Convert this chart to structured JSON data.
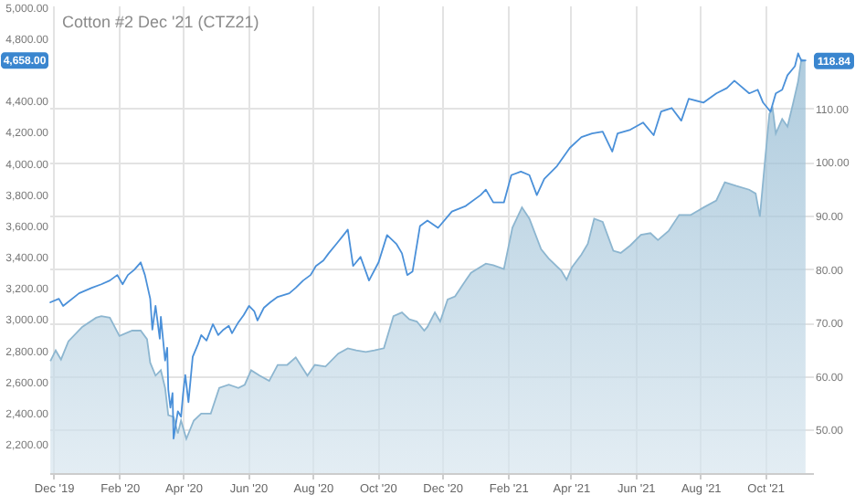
{
  "chart_data": {
    "type": "line",
    "title": "Cotton #2 Dec '21 (CTZ21)",
    "xlim": [
      "2019-11-27",
      "2021-11-15"
    ],
    "xticks": [
      {
        "value": "2019-12-01",
        "label": "Dec '19"
      },
      {
        "value": "2020-02-01",
        "label": "Feb '20"
      },
      {
        "value": "2020-04-01",
        "label": "Apr '20"
      },
      {
        "value": "2020-06-01",
        "label": "Jun '20"
      },
      {
        "value": "2020-08-01",
        "label": "Aug '20"
      },
      {
        "value": "2020-10-01",
        "label": "Oct '20"
      },
      {
        "value": "2020-12-01",
        "label": "Dec '20"
      },
      {
        "value": "2021-02-01",
        "label": "Feb '21"
      },
      {
        "value": "2021-04-01",
        "label": "Apr '21"
      },
      {
        "value": "2021-06-01",
        "label": "Jun '21"
      },
      {
        "value": "2021-08-01",
        "label": "Aug '21"
      },
      {
        "value": "2021-10-01",
        "label": "Oct '21"
      }
    ],
    "ylim": [
      2014,
      5010
    ],
    "yticks": [
      {
        "value": 2200,
        "label": "2,200.00"
      },
      {
        "value": 2400,
        "label": "2,400.00"
      },
      {
        "value": 2600,
        "label": "2,600.00"
      },
      {
        "value": 2800,
        "label": "2,800.00"
      },
      {
        "value": 3000,
        "label": "3,000.00"
      },
      {
        "value": 3200,
        "label": "3,200.00"
      },
      {
        "value": 3400,
        "label": "3,400.00"
      },
      {
        "value": 3600,
        "label": "3,600.00"
      },
      {
        "value": 3800,
        "label": "3,800.00"
      },
      {
        "value": 4000,
        "label": "4,000.00"
      },
      {
        "value": 4200,
        "label": "4,200.00"
      },
      {
        "value": 4400,
        "label": "4,400.00"
      },
      {
        "value": 4800,
        "label": "4,800.00"
      },
      {
        "value": 5000,
        "label": "5,000.00"
      }
    ],
    "y2lim": [
      41.9,
      129.2
    ],
    "y2ticks": [
      {
        "value": 50,
        "label": "50.00"
      },
      {
        "value": 60,
        "label": "60.00"
      },
      {
        "value": 70,
        "label": "70.00"
      },
      {
        "value": 80,
        "label": "80.00"
      },
      {
        "value": 90,
        "label": "90.00"
      },
      {
        "value": 100,
        "label": "100.00"
      },
      {
        "value": 110,
        "label": "110.00"
      }
    ],
    "grid": true,
    "annotations": [
      "4,658.00",
      "118.84"
    ],
    "series": [
      {
        "color": "#4a90d9",
        "x": [
          "2019-11-28",
          "2019-12-06",
          "2019-12-10",
          "2019-12-25",
          "2020-01-06",
          "2020-01-15",
          "2020-01-23",
          "2020-01-30",
          "2020-02-04",
          "2020-02-09",
          "2020-02-15",
          "2020-02-21",
          "2020-02-25",
          "2020-03-01",
          "2020-03-03",
          "2020-03-06",
          "2020-03-10",
          "2020-03-11",
          "2020-03-15",
          "2020-03-17",
          "2020-03-18",
          "2020-03-20",
          "2020-03-22",
          "2020-03-23",
          "2020-03-27",
          "2020-03-30",
          "2020-04-01",
          "2020-04-03",
          "2020-04-06",
          "2020-04-10",
          "2020-04-15",
          "2020-04-18",
          "2020-04-23",
          "2020-04-29",
          "2020-05-04",
          "2020-05-09",
          "2020-05-14",
          "2020-05-17",
          "2020-05-23",
          "2020-05-28",
          "2020-06-02",
          "2020-06-07",
          "2020-06-10",
          "2020-06-16",
          "2020-06-22",
          "2020-06-29",
          "2020-07-10",
          "2020-07-16",
          "2020-07-23",
          "2020-07-30",
          "2020-08-04",
          "2020-08-11",
          "2020-08-16",
          "2020-08-23",
          "2020-08-30",
          "2020-09-03",
          "2020-09-08",
          "2020-09-15",
          "2020-09-23",
          "2020-10-02",
          "2020-10-10",
          "2020-10-19",
          "2020-10-24",
          "2020-10-29",
          "2020-11-03",
          "2020-11-10",
          "2020-11-17",
          "2020-11-27",
          "2020-12-10",
          "2020-12-23",
          "2021-01-06",
          "2021-01-11",
          "2021-01-18",
          "2021-01-28",
          "2021-02-04",
          "2021-02-13",
          "2021-02-21",
          "2021-02-28",
          "2021-03-07",
          "2021-03-19",
          "2021-03-31",
          "2021-04-11",
          "2021-04-21",
          "2021-05-01",
          "2021-05-10",
          "2021-05-15",
          "2021-05-27",
          "2021-06-08",
          "2021-06-18",
          "2021-06-25",
          "2021-07-05",
          "2021-07-14",
          "2021-07-21",
          "2021-08-04",
          "2021-08-16",
          "2021-08-26",
          "2021-09-02",
          "2021-09-16",
          "2021-09-24",
          "2021-09-29",
          "2021-10-06",
          "2021-10-11",
          "2021-10-17",
          "2021-10-22",
          "2021-10-29",
          "2021-11-01",
          "2021-11-04",
          "2021-11-08"
        ],
        "values": [
          3108,
          3131,
          3085,
          3166,
          3201,
          3224,
          3248,
          3283,
          3224,
          3283,
          3317,
          3364,
          3283,
          3131,
          2933,
          3085,
          2875,
          3015,
          2735,
          2817,
          2549,
          2433,
          2526,
          2235,
          2410,
          2375,
          2526,
          2642,
          2468,
          2759,
          2840,
          2898,
          2863,
          2968,
          2898,
          2933,
          2957,
          2910,
          2980,
          3026,
          3085,
          3050,
          2992,
          3073,
          3108,
          3143,
          3166,
          3201,
          3248,
          3283,
          3341,
          3376,
          3422,
          3480,
          3539,
          3574,
          3341,
          3399,
          3248,
          3364,
          3539,
          3480,
          3422,
          3283,
          3306,
          3597,
          3632,
          3585,
          3690,
          3725,
          3795,
          3830,
          3748,
          3748,
          3923,
          3946,
          3923,
          3795,
          3899,
          3981,
          4097,
          4167,
          4190,
          4202,
          4074,
          4190,
          4214,
          4260,
          4179,
          4330,
          4353,
          4272,
          4412,
          4388,
          4447,
          4481,
          4528,
          4447,
          4470,
          4388,
          4330,
          4447,
          4470,
          4563,
          4621,
          4703,
          4656,
          4658
        ]
      },
      {
        "type": "area",
        "axis": "y2",
        "color": "#8db6d0",
        "x": [
          "2019-11-28",
          "2019-12-03",
          "2019-12-08",
          "2019-12-15",
          "2019-12-28",
          "2020-01-10",
          "2020-01-15",
          "2020-01-23",
          "2020-02-01",
          "2020-02-13",
          "2020-02-21",
          "2020-02-27",
          "2020-03-01",
          "2020-03-06",
          "2020-03-11",
          "2020-03-15",
          "2020-03-18",
          "2020-03-23",
          "2020-03-27",
          "2020-03-30",
          "2020-04-04",
          "2020-04-11",
          "2020-04-18",
          "2020-04-27",
          "2020-05-05",
          "2020-05-14",
          "2020-05-23",
          "2020-05-29",
          "2020-06-04",
          "2020-06-12",
          "2020-06-21",
          "2020-06-29",
          "2020-07-08",
          "2020-07-16",
          "2020-07-27",
          "2020-08-03",
          "2020-08-13",
          "2020-08-25",
          "2020-09-03",
          "2020-09-11",
          "2020-09-20",
          "2020-09-28",
          "2020-10-07",
          "2020-10-16",
          "2020-10-24",
          "2020-10-31",
          "2020-11-07",
          "2020-11-14",
          "2020-11-17",
          "2020-11-24",
          "2020-11-29",
          "2020-12-06",
          "2020-12-13",
          "2020-12-20",
          "2020-12-28",
          "2021-01-11",
          "2021-01-18",
          "2021-01-28",
          "2021-02-05",
          "2021-02-14",
          "2021-02-21",
          "2021-03-04",
          "2021-03-11",
          "2021-03-23",
          "2021-03-28",
          "2021-04-02",
          "2021-04-11",
          "2021-04-17",
          "2021-04-23",
          "2021-05-01",
          "2021-05-11",
          "2021-05-18",
          "2021-05-27",
          "2021-06-06",
          "2021-06-15",
          "2021-06-22",
          "2021-07-02",
          "2021-07-12",
          "2021-07-23",
          "2021-08-04",
          "2021-08-16",
          "2021-08-24",
          "2021-09-04",
          "2021-09-16",
          "2021-09-22",
          "2021-09-26",
          "2021-10-01",
          "2021-10-05",
          "2021-10-08",
          "2021-10-11",
          "2021-10-17",
          "2021-10-22",
          "2021-10-27",
          "2021-11-01",
          "2021-11-04",
          "2021-11-08"
        ],
        "values": [
          62.8,
          64.8,
          63.1,
          66.5,
          69.2,
          70.9,
          71.2,
          70.9,
          67.5,
          68.5,
          68.5,
          66.9,
          62.5,
          60.1,
          61.1,
          57.8,
          52.7,
          52.4,
          49.3,
          51.7,
          48.3,
          51.7,
          53.0,
          53.0,
          57.8,
          58.4,
          57.8,
          58.4,
          61.1,
          60.1,
          59.1,
          62.1,
          62.1,
          63.5,
          60.1,
          62.1,
          61.8,
          64.2,
          65.2,
          64.8,
          64.5,
          64.8,
          65.2,
          71.2,
          71.9,
          70.6,
          70.2,
          68.5,
          69.2,
          71.9,
          70.2,
          74.3,
          74.9,
          77.0,
          79.3,
          81.0,
          80.7,
          80.0,
          87.7,
          91.5,
          89.4,
          83.7,
          82.0,
          79.7,
          78.0,
          80.3,
          82.7,
          84.7,
          89.4,
          88.8,
          83.4,
          83.0,
          84.4,
          86.4,
          86.7,
          85.4,
          87.1,
          90.1,
          90.1,
          91.5,
          92.8,
          96.2,
          95.5,
          94.8,
          94.1,
          89.8,
          100.6,
          109.0,
          110.0,
          105.3,
          108.0,
          106.6,
          110.7,
          115.0,
          119.1,
          118.84
        ]
      }
    ]
  }
}
